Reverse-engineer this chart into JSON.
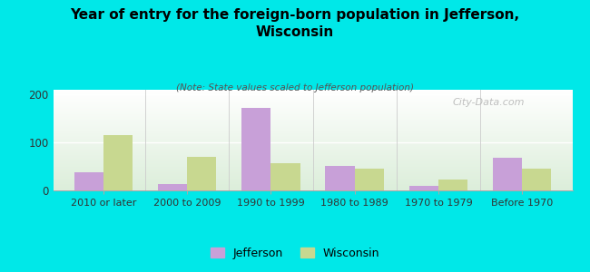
{
  "title": "Year of entry for the foreign-born population in Jefferson,\nWisconsin",
  "subtitle": "(Note: State values scaled to Jefferson population)",
  "categories": [
    "2010 or later",
    "2000 to 2009",
    "1990 to 1999",
    "1980 to 1989",
    "1970 to 1979",
    "Before 1970"
  ],
  "jefferson_values": [
    38,
    13,
    172,
    52,
    9,
    68
  ],
  "wisconsin_values": [
    115,
    70,
    57,
    45,
    22,
    45
  ],
  "jefferson_color": "#c8a0d8",
  "wisconsin_color": "#c8d890",
  "background_color": "#00e8e8",
  "ylim": [
    0,
    210
  ],
  "yticks": [
    0,
    100,
    200
  ],
  "bar_width": 0.35,
  "watermark": "City-Data.com",
  "legend_jefferson": "Jefferson",
  "legend_wisconsin": "Wisconsin"
}
